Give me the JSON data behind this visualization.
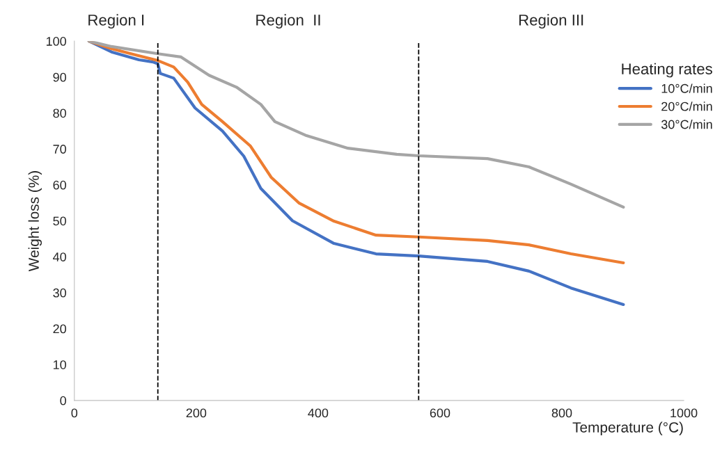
{
  "chart_data": {
    "type": "line",
    "xlabel": "Temperature (°C)",
    "ylabel": "Weight loss (%)",
    "legend_title": "Heating rates",
    "series": [
      {
        "name": "10°C/min",
        "color": "#4472c4",
        "x": [
          24,
          61,
          106,
          129,
          137,
          141,
          163,
          198,
          243,
          278,
          306,
          358,
          426,
          495,
          565,
          678,
          746,
          815,
          901
        ],
        "values": [
          100,
          97,
          94.8,
          94.2,
          93.7,
          91,
          89.7,
          81.4,
          75,
          68,
          59,
          50,
          43.7,
          40.8,
          40.2,
          38.7,
          36,
          31.3,
          26.7
        ]
      },
      {
        "name": "20°C/min",
        "color": "#ed7d31",
        "x": [
          24,
          61,
          106,
          137,
          163,
          186,
          209,
          243,
          289,
          323,
          369,
          426,
          495,
          565,
          678,
          746,
          815,
          901
        ],
        "values": [
          100,
          97.9,
          95.9,
          94.6,
          92.8,
          88.6,
          82.4,
          77.6,
          70.8,
          62.1,
          54.9,
          49.9,
          46,
          45.5,
          44.5,
          43.3,
          40.8,
          38.3
        ]
      },
      {
        "name": "30°C/min",
        "color": "#a5a5a5",
        "x": [
          24,
          61,
          137,
          175,
          221,
          266,
          306,
          329,
          381,
          449,
          529,
          565,
          678,
          746,
          815,
          901
        ],
        "values": [
          100,
          98.5,
          96.5,
          95.6,
          90.5,
          87.2,
          82.4,
          77.6,
          73.7,
          70.2,
          68.5,
          68.1,
          67.3,
          65,
          60.2,
          53.8
        ]
      }
    ],
    "xlim": [
      0,
      1000
    ],
    "xticks": [
      0,
      200,
      400,
      600,
      800,
      1000
    ],
    "ylim": [
      0,
      100
    ],
    "yticks": [
      0,
      10,
      20,
      30,
      40,
      50,
      60,
      70,
      80,
      90,
      100
    ],
    "ref_lines": [
      {
        "axis": "x",
        "value": 137,
        "color": "#000000",
        "line_style": "dashed"
      },
      {
        "axis": "x",
        "value": 565,
        "color": "#000000",
        "line_style": "dashed"
      }
    ],
    "annotations": [
      "Region I",
      "Region  II",
      "Region III"
    ],
    "grid": false,
    "legend": "top right",
    "marker": "none",
    "line_style": "solid"
  }
}
